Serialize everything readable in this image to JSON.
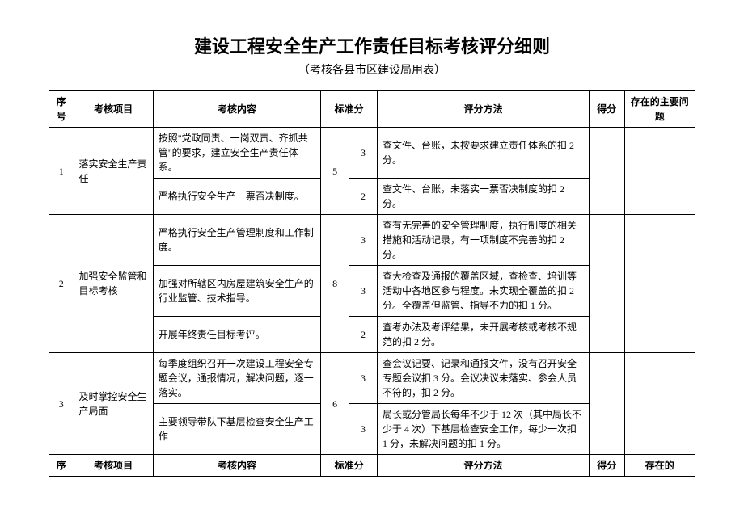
{
  "title": "建设工程安全生产工作责任目标考核评分细则",
  "subtitle": "（考核各县市区建设局用表）",
  "headers": {
    "seq": "序号",
    "item": "考核项目",
    "content": "考核内容",
    "stdscore": "标准分",
    "method": "评分方法",
    "score": "得分",
    "issue": "存在的主要问题"
  },
  "footer_headers": {
    "seq": "序",
    "item": "考核项目",
    "content": "考核内容",
    "stdscore": "标准分",
    "method": "评分方法",
    "score": "得分",
    "issue": "存在的"
  },
  "rows": [
    {
      "seq": "1",
      "item": "落实安全生产责任",
      "stdscore": "5",
      "subs": [
        {
          "content": "按照\"党政同责、一岗双责、齐抓共管\"的要求，建立安全生产责任体系。",
          "subscore": "3",
          "method": "查文件、台账，未按要求建立责任体系的扣 2 分。"
        },
        {
          "content": "严格执行安全生产一票否决制度。",
          "subscore": "2",
          "method": "查文件、台账，未落实一票否决制度的扣 2 分。"
        }
      ]
    },
    {
      "seq": "2",
      "item": "加强安全监管和目标考核",
      "stdscore": "8",
      "subs": [
        {
          "content": "严格执行安全生产管理制度和工作制度。",
          "subscore": "3",
          "method": "查有无完善的安全管理制度，执行制度的相关措施和活动记录，有一项制度不完善的扣 2 分。"
        },
        {
          "content": "加强对所辖区内房屋建筑安全生产的行业监管、技术指导。",
          "subscore": "3",
          "method": "查大检查及通报的覆盖区域，查检查、培训等活动中各地区参与程度。未实现全覆盖的扣 2 分。全覆盖但监管、指导不力的扣 1 分。"
        },
        {
          "content": "开展年终责任目标考评。",
          "subscore": "2",
          "method": "查考办法及考评结果，未开展考核或考核不规范的扣 2 分。"
        }
      ]
    },
    {
      "seq": "3",
      "item": "及时掌控安全生产局面",
      "stdscore": "6",
      "subs": [
        {
          "content": "每季度组织召开一次建设工程安全专题会议，通报情况，解决问题，逐一落实。",
          "subscore": "3",
          "method": "查会议记要、记录和通报文件，没有召开安全专题会议扣 3 分。会议决议未落实、参会人员不符的，扣 2 分。"
        },
        {
          "content": "主要领导带队下基层检查安全生产工作",
          "subscore": "3",
          "method": "局长或分管局长每年不少于 12 次（其中局长不少于 4 次）下基层检查安全工作，每少一次扣 1 分，未解决问题的扣 1 分。"
        }
      ]
    }
  ]
}
